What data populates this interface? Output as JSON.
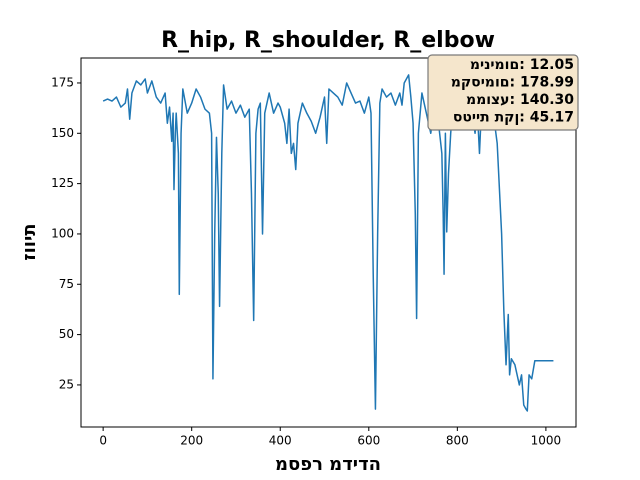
{
  "chart_data": {
    "type": "line",
    "title": "R_hip, R_shoulder, R_elbow",
    "x_label": "מספר מדידה",
    "y_label": "זווית",
    "annotation": [
      "מינימום: 12.05",
      "מקסימום: 178.99",
      "ממוצע: 140.30",
      "סטיית תקן: 45.17"
    ],
    "xlim": [
      -50,
      1068
    ],
    "ylim": [
      4.1,
      187.4
    ],
    "xticks": [
      0,
      200,
      400,
      600,
      800,
      1000
    ],
    "yticks": [
      25,
      50,
      75,
      100,
      125,
      150,
      175
    ],
    "grid": false,
    "x": [
      0,
      10,
      20,
      30,
      40,
      50,
      55,
      60,
      65,
      75,
      85,
      95,
      100,
      110,
      120,
      130,
      140,
      145,
      150,
      155,
      158,
      160,
      163,
      165,
      170,
      172,
      176,
      180,
      190,
      200,
      210,
      220,
      230,
      240,
      245,
      248,
      252,
      256,
      260,
      263,
      268,
      272,
      280,
      290,
      300,
      310,
      320,
      330,
      335,
      340,
      345,
      350,
      355,
      360,
      365,
      375,
      385,
      395,
      400,
      410,
      415,
      420,
      425,
      430,
      435,
      440,
      450,
      460,
      470,
      480,
      490,
      500,
      505,
      510,
      520,
      530,
      540,
      550,
      560,
      570,
      580,
      590,
      600,
      605,
      610,
      615,
      620,
      625,
      630,
      640,
      650,
      660,
      670,
      675,
      680,
      690,
      695,
      700,
      705,
      708,
      712,
      720,
      730,
      740,
      750,
      755,
      760,
      765,
      768,
      770,
      773,
      776,
      780,
      785,
      790,
      800,
      810,
      820,
      830,
      840,
      845,
      850,
      855,
      860,
      870,
      880,
      890,
      900,
      905,
      910,
      915,
      918,
      922,
      930,
      940,
      945,
      950,
      955,
      958,
      962,
      968,
      975,
      985,
      1000,
      1017
    ],
    "series": [
      {
        "name": "R_hip, R_shoulder, R_elbow",
        "color": "#1f77b4",
        "values": [
          166,
          167,
          166,
          168,
          163,
          165,
          172,
          157,
          170,
          176,
          174,
          177,
          170,
          176,
          168,
          165,
          170,
          155,
          163,
          146,
          160,
          122,
          150,
          160,
          140,
          70,
          150,
          172,
          160,
          165,
          172,
          168,
          162,
          160,
          150,
          28,
          100,
          148,
          120,
          64,
          140,
          174,
          162,
          166,
          160,
          164,
          158,
          162,
          120,
          57,
          150,
          162,
          165,
          100,
          160,
          170,
          160,
          165,
          163,
          155,
          145,
          162,
          140,
          145,
          132,
          155,
          165,
          160,
          156,
          150,
          158,
          168,
          145,
          172,
          170,
          168,
          164,
          175,
          170,
          165,
          166,
          160,
          168,
          160,
          80,
          13,
          100,
          165,
          172,
          168,
          170,
          164,
          170,
          164,
          175,
          179,
          168,
          155,
          110,
          58,
          150,
          170,
          160,
          150,
          168,
          160,
          150,
          140,
          110,
          80,
          150,
          101,
          130,
          150,
          165,
          160,
          170,
          168,
          165,
          150,
          162,
          140,
          165,
          160,
          168,
          162,
          145,
          100,
          62,
          35,
          60,
          30,
          38,
          35,
          25,
          30,
          15,
          13,
          12.05,
          30,
          28,
          37,
          37,
          37,
          37
        ]
      }
    ]
  }
}
